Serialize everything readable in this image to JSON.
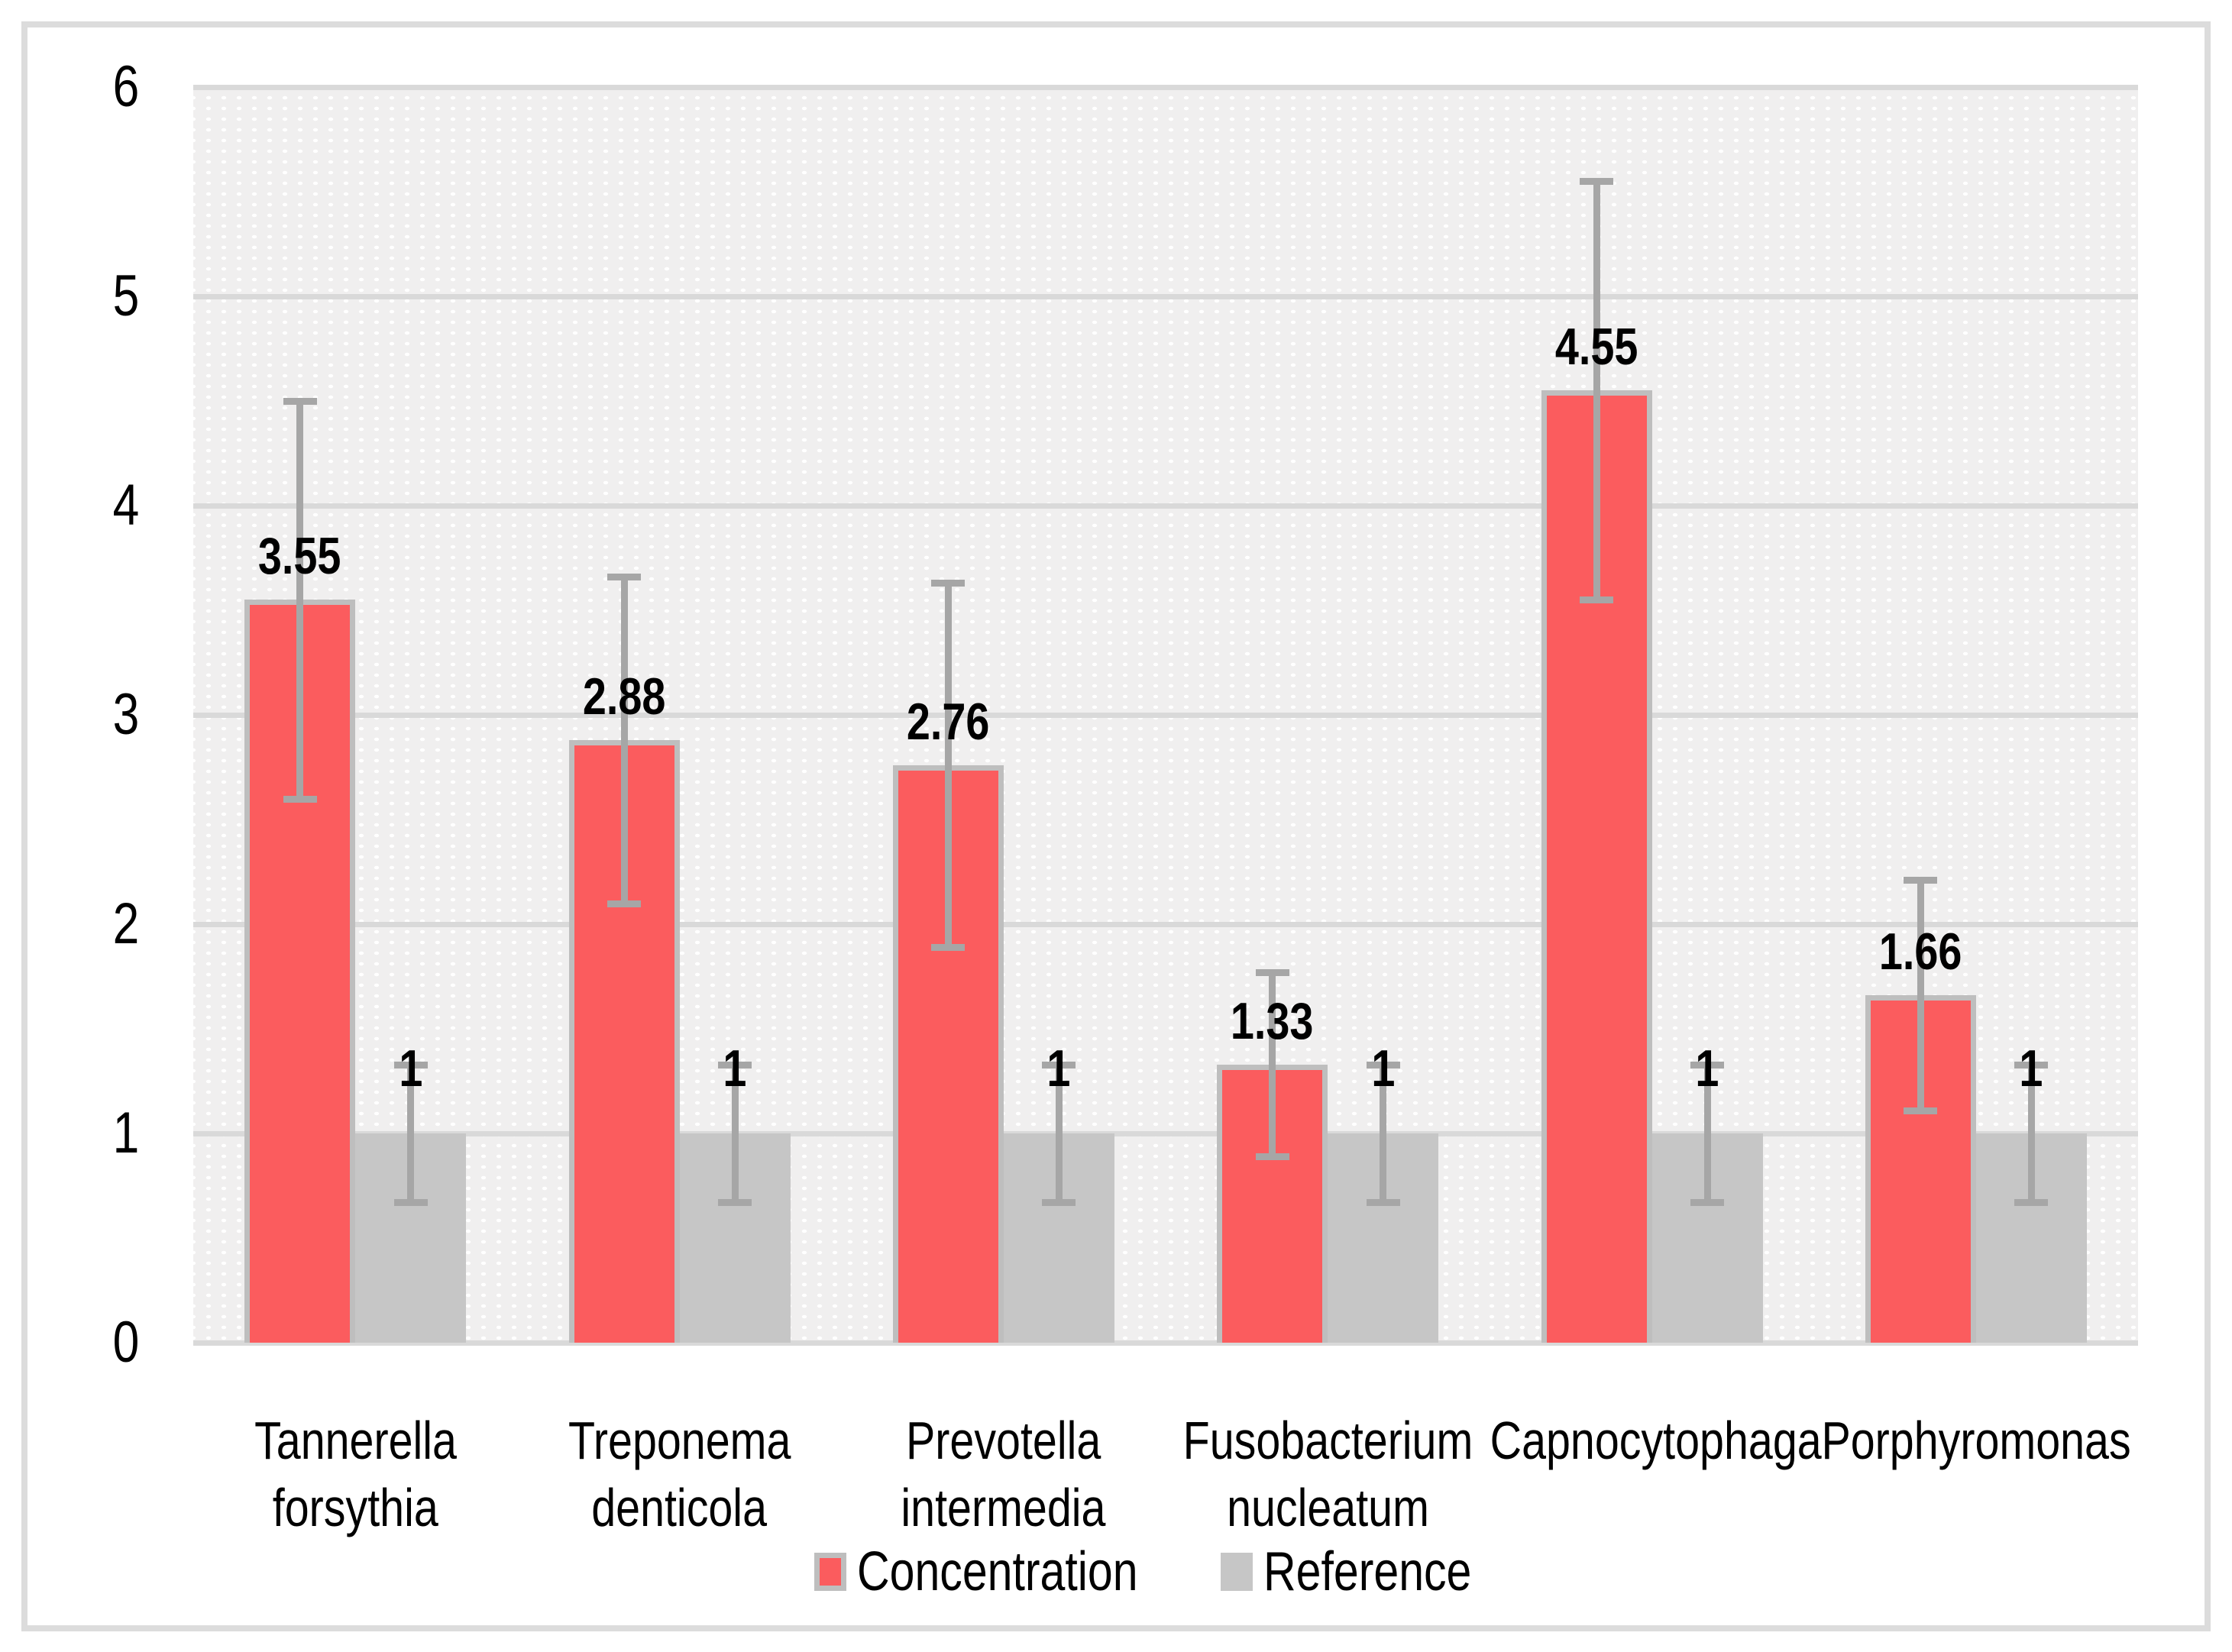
{
  "chart_data": {
    "type": "bar",
    "title": "",
    "xlabel": "",
    "ylabel": "",
    "categories": [
      "Tannerella forsythia",
      "Treponema denticola",
      "Prevotella intermedia",
      "Fusobacterium nucleatum",
      "Capnocytophaga",
      "Porphyromonas"
    ],
    "categories_lines": [
      [
        "Tannerella",
        "forsythia"
      ],
      [
        "Treponema",
        "denticola"
      ],
      [
        "Prevotella",
        "intermedia"
      ],
      [
        "Fusobacterium",
        "nucleatum"
      ],
      [
        "Capnocytophaga"
      ],
      [
        "Porphyromonas"
      ]
    ],
    "series": [
      {
        "name": "Concentration",
        "color": "#fb5c5e",
        "border_color": "#bebebe",
        "values": [
          3.55,
          2.88,
          2.76,
          1.33,
          4.55,
          1.66
        ],
        "value_labels": [
          "3.55",
          "2.88",
          "2.76",
          "1.33",
          "4.55",
          "1.66"
        ],
        "errors": [
          0.95,
          0.78,
          0.87,
          0.44,
          1.0,
          0.55
        ]
      },
      {
        "name": "Reference",
        "color": "#c6c6c6",
        "border_color": "#c6c6c6",
        "values": [
          1,
          1,
          1,
          1,
          1,
          1
        ],
        "value_labels": [
          "1",
          "1",
          "1",
          "1",
          "1",
          "1"
        ],
        "errors": [
          0.33,
          0.33,
          0.33,
          0.33,
          0.33,
          0.33
        ]
      }
    ],
    "ylim": [
      0,
      6
    ],
    "yticks": [
      0,
      1,
      2,
      3,
      4,
      5,
      6
    ],
    "grid": true,
    "legend_position": "bottom",
    "colors": {
      "error_bar": "#a6a6a6",
      "gridline": "#d9d9d9",
      "axis_line": "#d9d9d9",
      "plot_pattern_base": "#f0efef",
      "plot_pattern_dot": "#ffffff",
      "frame_border": "#dcdcdc",
      "text": "#000000"
    }
  }
}
